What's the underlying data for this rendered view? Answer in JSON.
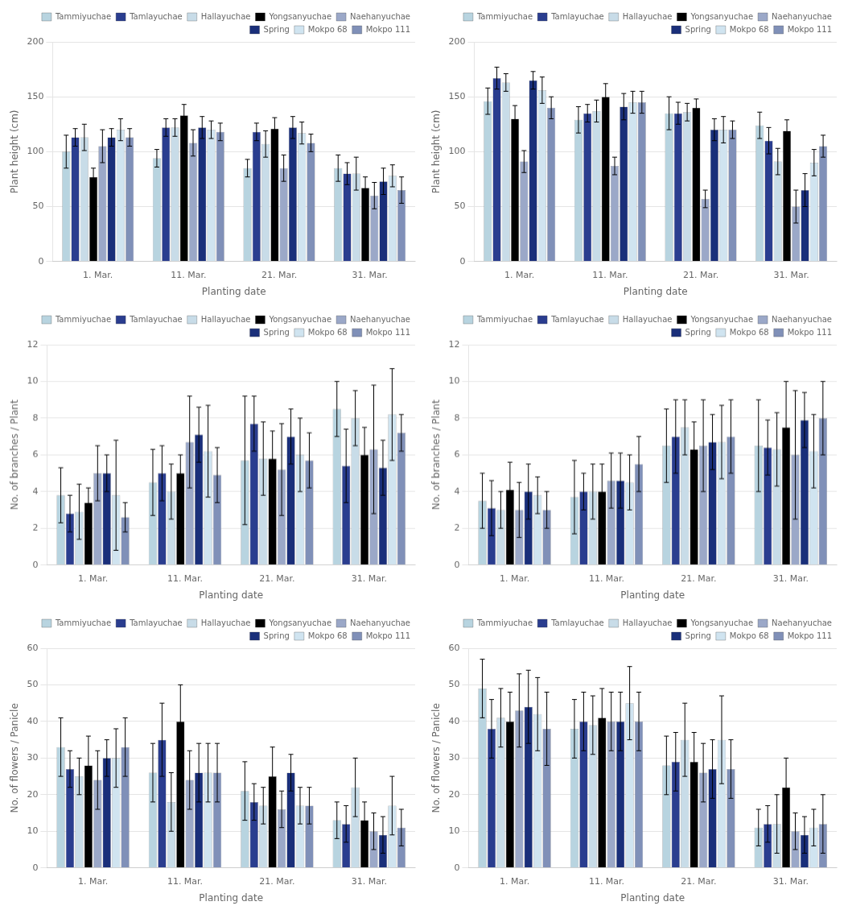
{
  "chart_data": [
    {
      "type": "bar",
      "xlabel": "Planting date",
      "ylabel": "Plant height (cm)",
      "categories": [
        "1. Mar.",
        "11. Mar.",
        "21. Mar.",
        "31. Mar."
      ],
      "series": [
        {
          "name": "Tammiyuchae",
          "color": "#b8d4e0",
          "values": [
            100,
            94,
            85,
            85
          ],
          "errors": [
            15,
            8,
            8,
            12
          ]
        },
        {
          "name": "Tamlayuchae",
          "color": "#2a3d8f",
          "values": [
            113,
            122,
            118,
            80
          ],
          "errors": [
            8,
            8,
            8,
            10
          ]
        },
        {
          "name": "Hallayuchae",
          "color": "#c8dce8",
          "values": [
            113,
            122,
            107,
            80
          ],
          "errors": [
            12,
            8,
            12,
            15
          ]
        },
        {
          "name": "Yongsanyuchae",
          "color": "#000000",
          "values": [
            77,
            133,
            121,
            67
          ],
          "errors": [
            8,
            10,
            10,
            10
          ]
        },
        {
          "name": "Naehanyuchae",
          "color": "#9ba8c8",
          "values": [
            105,
            108,
            85,
            60
          ],
          "errors": [
            15,
            12,
            12,
            12
          ]
        },
        {
          "name": "Spring",
          "color": "#1a2f7a",
          "values": [
            113,
            122,
            122,
            73
          ],
          "errors": [
            8,
            10,
            10,
            12
          ]
        },
        {
          "name": "Mokpo 68",
          "color": "#d0e4f0",
          "values": [
            120,
            120,
            117,
            78
          ],
          "errors": [
            10,
            8,
            10,
            10
          ]
        },
        {
          "name": "Mokpo 111",
          "color": "#8090b8",
          "values": [
            113,
            118,
            108,
            65
          ],
          "errors": [
            8,
            8,
            8,
            12
          ]
        }
      ],
      "ylim": [
        0,
        200
      ],
      "yticks": [
        0,
        50,
        100,
        150,
        200
      ],
      "grid": true,
      "legend": "upper right"
    },
    {
      "type": "bar",
      "xlabel": "Planting date",
      "ylabel": "Plant height (cm)",
      "categories": [
        "1. Mar.",
        "11. Mar.",
        "21. Mar.",
        "31. Mar."
      ],
      "series": [
        {
          "name": "Tammiyuchae",
          "color": "#b8d4e0",
          "values": [
            146,
            129,
            135,
            124
          ],
          "errors": [
            12,
            12,
            15,
            12
          ]
        },
        {
          "name": "Tamlayuchae",
          "color": "#2a3d8f",
          "values": [
            167,
            135,
            135,
            110
          ],
          "errors": [
            10,
            8,
            10,
            12
          ]
        },
        {
          "name": "Hallayuchae",
          "color": "#c8dce8",
          "values": [
            163,
            137,
            136,
            91
          ],
          "errors": [
            8,
            10,
            8,
            12
          ]
        },
        {
          "name": "Yongsanyuchae",
          "color": "#000000",
          "values": [
            130,
            150,
            140,
            119
          ],
          "errors": [
            12,
            12,
            8,
            10
          ]
        },
        {
          "name": "Naehanyuchae",
          "color": "#9ba8c8",
          "values": [
            91,
            87,
            57,
            50
          ],
          "errors": [
            10,
            8,
            8,
            15
          ]
        },
        {
          "name": "Spring",
          "color": "#1a2f7a",
          "values": [
            165,
            141,
            120,
            65
          ],
          "errors": [
            8,
            12,
            10,
            15
          ]
        },
        {
          "name": "Mokpo 68",
          "color": "#d0e4f0",
          "values": [
            156,
            145,
            120,
            90
          ],
          "errors": [
            12,
            10,
            12,
            12
          ]
        },
        {
          "name": "Mokpo 111",
          "color": "#8090b8",
          "values": [
            140,
            145,
            120,
            105
          ],
          "errors": [
            10,
            10,
            8,
            10
          ]
        }
      ],
      "ylim": [
        0,
        200
      ],
      "yticks": [
        0,
        50,
        100,
        150,
        200
      ],
      "grid": true,
      "legend": "upper right"
    },
    {
      "type": "bar",
      "xlabel": "Planting date",
      "ylabel": "No. of branches / Plant",
      "categories": [
        "1. Mar.",
        "11. Mar.",
        "21. Mar.",
        "31. Mar."
      ],
      "series": [
        {
          "name": "Tammiyuchae",
          "color": "#b8d4e0",
          "values": [
            3.8,
            4.5,
            5.7,
            8.5
          ],
          "errors": [
            1.5,
            1.8,
            3.5,
            1.5
          ]
        },
        {
          "name": "Tamlayuchae",
          "color": "#2a3d8f",
          "values": [
            2.8,
            5.0,
            7.7,
            5.4
          ],
          "errors": [
            1.0,
            1.5,
            1.5,
            2.0
          ]
        },
        {
          "name": "Hallayuchae",
          "color": "#c8dce8",
          "values": [
            2.9,
            4.0,
            5.8,
            8.0
          ],
          "errors": [
            1.5,
            1.5,
            2.0,
            1.5
          ]
        },
        {
          "name": "Yongsanyuchae",
          "color": "#000000",
          "values": [
            3.4,
            5.0,
            5.8,
            6.0
          ],
          "errors": [
            0.8,
            1.0,
            1.5,
            1.5
          ]
        },
        {
          "name": "Naehanyuchae",
          "color": "#9ba8c8",
          "values": [
            5.0,
            6.7,
            5.2,
            6.3
          ],
          "errors": [
            1.5,
            2.5,
            2.5,
            3.5
          ]
        },
        {
          "name": "Spring",
          "color": "#1a2f7a",
          "values": [
            5.0,
            7.1,
            7.0,
            5.3
          ],
          "errors": [
            1.0,
            1.5,
            1.5,
            1.5
          ]
        },
        {
          "name": "Mokpo 68",
          "color": "#d0e4f0",
          "values": [
            3.8,
            6.2,
            6.0,
            8.2
          ],
          "errors": [
            3.0,
            2.5,
            2.0,
            2.5
          ]
        },
        {
          "name": "Mokpo 111",
          "color": "#8090b8",
          "values": [
            2.6,
            4.9,
            5.7,
            7.2
          ],
          "errors": [
            0.8,
            1.5,
            1.5,
            1.0
          ]
        }
      ],
      "ylim": [
        0,
        12
      ],
      "yticks": [
        0,
        2,
        4,
        6,
        8,
        10,
        12
      ],
      "grid": true,
      "legend": "upper right"
    },
    {
      "type": "bar",
      "xlabel": "Planting date",
      "ylabel": "No. of branches / Plant",
      "categories": [
        "1. Mar.",
        "11. Mar.",
        "21. Mar.",
        "31. Mar."
      ],
      "series": [
        {
          "name": "Tammiyuchae",
          "color": "#b8d4e0",
          "values": [
            3.5,
            3.7,
            6.5,
            6.5
          ],
          "errors": [
            1.5,
            2.0,
            2.0,
            2.5
          ]
        },
        {
          "name": "Tamlayuchae",
          "color": "#2a3d8f",
          "values": [
            3.1,
            4.0,
            7.0,
            6.4
          ],
          "errors": [
            1.5,
            1.0,
            2.0,
            1.5
          ]
        },
        {
          "name": "Hallayuchae",
          "color": "#c8dce8",
          "values": [
            3.0,
            4.0,
            7.5,
            6.3
          ],
          "errors": [
            1.0,
            1.5,
            1.5,
            2.0
          ]
        },
        {
          "name": "Yongsanyuchae",
          "color": "#000000",
          "values": [
            4.1,
            4.0,
            6.3,
            7.5
          ],
          "errors": [
            1.5,
            1.5,
            1.5,
            2.5
          ]
        },
        {
          "name": "Naehanyuchae",
          "color": "#9ba8c8",
          "values": [
            3.0,
            4.6,
            6.5,
            6.0
          ],
          "errors": [
            1.5,
            1.5,
            2.5,
            3.5
          ]
        },
        {
          "name": "Spring",
          "color": "#1a2f7a",
          "values": [
            4.0,
            4.6,
            6.7,
            7.9
          ],
          "errors": [
            1.5,
            1.5,
            1.5,
            1.5
          ]
        },
        {
          "name": "Mokpo 68",
          "color": "#d0e4f0",
          "values": [
            3.8,
            4.5,
            6.7,
            6.2
          ],
          "errors": [
            1.0,
            1.5,
            2.0,
            2.0
          ]
        },
        {
          "name": "Mokpo 111",
          "color": "#8090b8",
          "values": [
            3.0,
            5.5,
            7.0,
            8.0
          ],
          "errors": [
            1.0,
            1.5,
            2.0,
            2.0
          ]
        }
      ],
      "ylim": [
        0,
        12
      ],
      "yticks": [
        0,
        2,
        4,
        6,
        8,
        10,
        12
      ],
      "grid": true,
      "legend": "upper right"
    },
    {
      "type": "bar",
      "xlabel": "Planting date",
      "ylabel": "No. of flowers / Panicle",
      "categories": [
        "1. Mar.",
        "11. Mar.",
        "21. Mar.",
        "31. Mar."
      ],
      "series": [
        {
          "name": "Tammiyuchae",
          "color": "#b8d4e0",
          "values": [
            33,
            26,
            21,
            13
          ],
          "errors": [
            8,
            8,
            8,
            5
          ]
        },
        {
          "name": "Tamlayuchae",
          "color": "#2a3d8f",
          "values": [
            27,
            35,
            18,
            12
          ],
          "errors": [
            5,
            10,
            5,
            5
          ]
        },
        {
          "name": "Hallayuchae",
          "color": "#c8dce8",
          "values": [
            25,
            18,
            17,
            22
          ],
          "errors": [
            5,
            8,
            5,
            8
          ]
        },
        {
          "name": "Yongsanyuchae",
          "color": "#000000",
          "values": [
            28,
            40,
            25,
            13
          ],
          "errors": [
            8,
            10,
            8,
            5
          ]
        },
        {
          "name": "Naehanyuchae",
          "color": "#9ba8c8",
          "values": [
            24,
            24,
            16,
            10
          ],
          "errors": [
            8,
            8,
            5,
            5
          ]
        },
        {
          "name": "Spring",
          "color": "#1a2f7a",
          "values": [
            30,
            26,
            26,
            9
          ],
          "errors": [
            5,
            8,
            5,
            5
          ]
        },
        {
          "name": "Mokpo 68",
          "color": "#d0e4f0",
          "values": [
            30,
            26,
            17,
            17
          ],
          "errors": [
            8,
            8,
            5,
            8
          ]
        },
        {
          "name": "Mokpo 111",
          "color": "#8090b8",
          "values": [
            33,
            26,
            17,
            11
          ],
          "errors": [
            8,
            8,
            5,
            5
          ]
        }
      ],
      "ylim": [
        0,
        60
      ],
      "yticks": [
        0,
        10,
        20,
        30,
        40,
        50,
        60
      ],
      "grid": true,
      "legend": "upper right"
    },
    {
      "type": "bar",
      "xlabel": "Planting date",
      "ylabel": "No. of flowers / Panicle",
      "categories": [
        "1. Mar.",
        "11. Mar.",
        "21. Mar.",
        "31. Mar."
      ],
      "series": [
        {
          "name": "Tammiyuchae",
          "color": "#b8d4e0",
          "values": [
            49,
            38,
            28,
            11
          ],
          "errors": [
            8,
            8,
            8,
            5
          ]
        },
        {
          "name": "Tamlayuchae",
          "color": "#2a3d8f",
          "values": [
            38,
            40,
            29,
            12
          ],
          "errors": [
            8,
            8,
            8,
            5
          ]
        },
        {
          "name": "Hallayuchae",
          "color": "#c8dce8",
          "values": [
            41,
            39,
            35,
            12
          ],
          "errors": [
            8,
            8,
            10,
            8
          ]
        },
        {
          "name": "Yongsanyuchae",
          "color": "#000000",
          "values": [
            40,
            41,
            29,
            22
          ],
          "errors": [
            8,
            8,
            8,
            8
          ]
        },
        {
          "name": "Naehanyuchae",
          "color": "#9ba8c8",
          "values": [
            43,
            40,
            26,
            10
          ],
          "errors": [
            10,
            8,
            8,
            5
          ]
        },
        {
          "name": "Spring",
          "color": "#1a2f7a",
          "values": [
            44,
            40,
            27,
            9
          ],
          "errors": [
            10,
            8,
            8,
            5
          ]
        },
        {
          "name": "Mokpo 68",
          "color": "#d0e4f0",
          "values": [
            42,
            45,
            35,
            11
          ],
          "errors": [
            10,
            10,
            12,
            5
          ]
        },
        {
          "name": "Mokpo 111",
          "color": "#8090b8",
          "values": [
            38,
            40,
            27,
            12
          ],
          "errors": [
            10,
            8,
            8,
            8
          ]
        }
      ],
      "ylim": [
        0,
        60
      ],
      "yticks": [
        0,
        10,
        20,
        30,
        40,
        50,
        60
      ],
      "grid": true,
      "legend": "upper right"
    }
  ]
}
